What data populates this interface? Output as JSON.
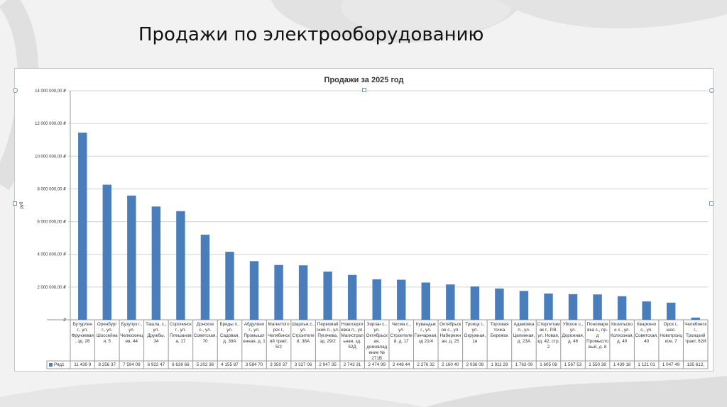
{
  "page": {
    "title": "Продажи по электрооборудованию"
  },
  "chart_data": {
    "type": "bar",
    "title": "Продажи за 2025 год",
    "ylabel": "руб",
    "ylim": [
      0,
      14000000
    ],
    "yticks": [
      0,
      2000000,
      4000000,
      6000000,
      8000000,
      10000000,
      12000000,
      14000000
    ],
    "ytick_labels": [
      "-  ₽",
      "2 000 000,00 ₽",
      "4 000 000,00 ₽",
      "6 000 000,00 ₽",
      "8 000 000,00 ₽",
      "10 000 000,00 ₽",
      "12 000 000,00 ₽",
      "14 000 000,00 ₽"
    ],
    "grid": true,
    "bar_color": "#4a7ebb",
    "categories": [
      "Бутурлин г., ул. Фрунзевая, зд. 26",
      "Оренбург г., ул. Шоссейная, 5",
      "Бузулук г., ул. Челюскинцев, 44",
      "Ташла, с., ул. Дружбы, 34",
      "Сорочинск г., ул. Плешанова, 17",
      "Донское с., ул. Советская, 70",
      "Бреды п., ул. Садовая, д. 39А",
      "Абдулино г., ул. Промышленная, д. 1",
      "Магнитогорск г., Челябинский тракт, 5/2",
      "Шарлык с., ул. Строителей, 38А",
      "Первомайский п., ул. Пугачева, зд. 29/2",
      "Новосергиевка п., ул. Магистральная, зд. 52Д",
      "Зирган с., ул. Октябрьская, домовладение № 271В",
      "Чесма с., ул. Строителей, д. 1Г",
      "Кувандык г., ул. Гончарная, зд 21/4",
      "Октябрьское с., ул. Набережная, д. 25",
      "Троицк г., ул. Окружная, 1в",
      "Торговая точка Бережок",
      "Адамовка п., ул. Целинная, д. 23А",
      "Стерлитамак г., Р.В. ул. Новая, зд. 42, стр. 2",
      "Уйское с., ул. Дорожная, д. 46",
      "Пономаревка с., пр-д Промысловый, д. 8",
      "Кизильское с., ул. Колхозная, д. 40",
      "Кваркено с., ул. Советская, 40",
      "Орск г., шос. Новотроицкое, 7",
      "Челябинск г., Троицкий тракт, 62И"
    ],
    "series": [
      {
        "name": "Ряд1",
        "values": [
          11439900,
          8256370,
          7594090,
          6922470,
          6639660,
          5202360,
          4155870,
          3584700,
          3350370,
          3327060,
          2947350,
          2743310,
          2474990,
          2448440,
          2276320,
          2160400,
          2036080,
          1911290,
          1763090,
          1605080,
          1567530,
          1550380,
          1439180,
          1121010,
          1047490,
          135612
        ],
        "value_labels": [
          "11 439 9",
          "8 256 37",
          "7 594 09",
          "6 922 47",
          "6 639 66",
          "5 202 36",
          "4 155 87",
          "3 584 70",
          "3 350 37",
          "3 327 06",
          "2 947 35",
          "2 743 31",
          "2 474 99",
          "2 448 44",
          "2 276 32",
          "2 160 40",
          "2 036 08",
          "1 911 29",
          "1 763 09",
          "1 605 08",
          "1 567 53",
          "1 550 38",
          "1 439 18",
          "1 121 01",
          "1 047 49",
          "135 612,"
        ]
      }
    ]
  }
}
